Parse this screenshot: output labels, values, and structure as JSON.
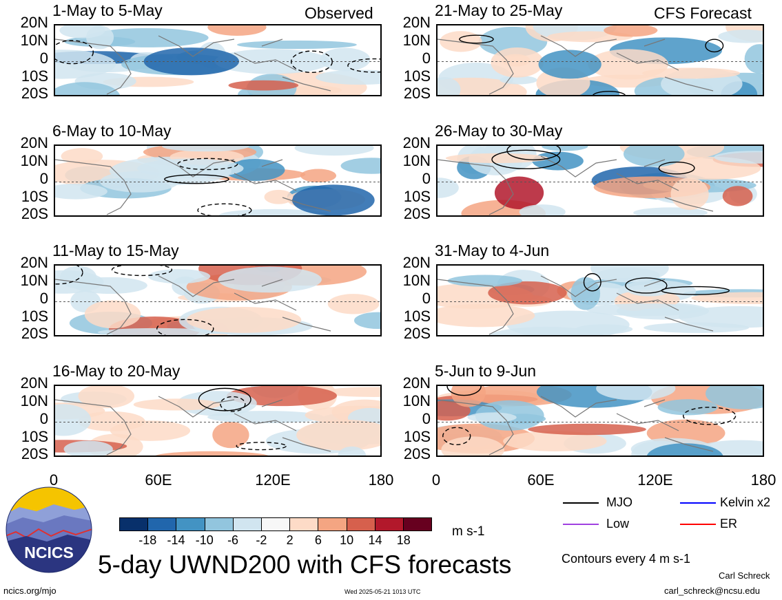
{
  "chart_data": {
    "type": "heatmap",
    "title": "5-day UWND200 with CFS forecasts",
    "units": "m s-1",
    "contour_note": "Contours every 4 m s-1",
    "observed_label": "Observed",
    "forecast_label": "CFS Forecast",
    "lat_ticks": [
      "20N",
      "10N",
      "0",
      "10S",
      "20S"
    ],
    "lon_ticks": [
      "0",
      "60E",
      "120E",
      "180"
    ],
    "colorbar": {
      "labels": [
        "-18",
        "-14",
        "-10",
        "-6",
        "-2",
        "2",
        "6",
        "10",
        "14",
        "18"
      ],
      "colors": [
        "#08306b",
        "#2166ac",
        "#4393c3",
        "#92c5de",
        "#d1e5f0",
        "#f7f7f7",
        "#fddbc7",
        "#f4a582",
        "#d6604d",
        "#b2182b",
        "#67001f"
      ]
    },
    "panels": [
      {
        "period": "1-May to 5-May",
        "source": "observed"
      },
      {
        "period": "6-May to 10-May",
        "source": "observed"
      },
      {
        "period": "11-May to 15-May",
        "source": "observed"
      },
      {
        "period": "16-May to 20-May",
        "source": "observed"
      },
      {
        "period": "21-May to 25-May",
        "source": "forecast"
      },
      {
        "period": "26-May to 30-May",
        "source": "forecast"
      },
      {
        "period": "31-May to 4-Jun",
        "source": "forecast"
      },
      {
        "period": "5-Jun to 9-Jun",
        "source": "forecast"
      }
    ],
    "legend": [
      {
        "name": "MJO",
        "color": "#000000"
      },
      {
        "name": "Kelvin x2",
        "color": "#0000ff"
      },
      {
        "name": "Low",
        "color": "#a040e0"
      },
      {
        "name": "ER",
        "color": "#ff0000"
      }
    ]
  },
  "logo_text": "NCICS",
  "site": "ncics.org/mjo",
  "timestamp": "Wed 2025-05-21 1013 UTC",
  "author": "Carl Schreck",
  "email": "carl_schreck@ncsu.edu"
}
